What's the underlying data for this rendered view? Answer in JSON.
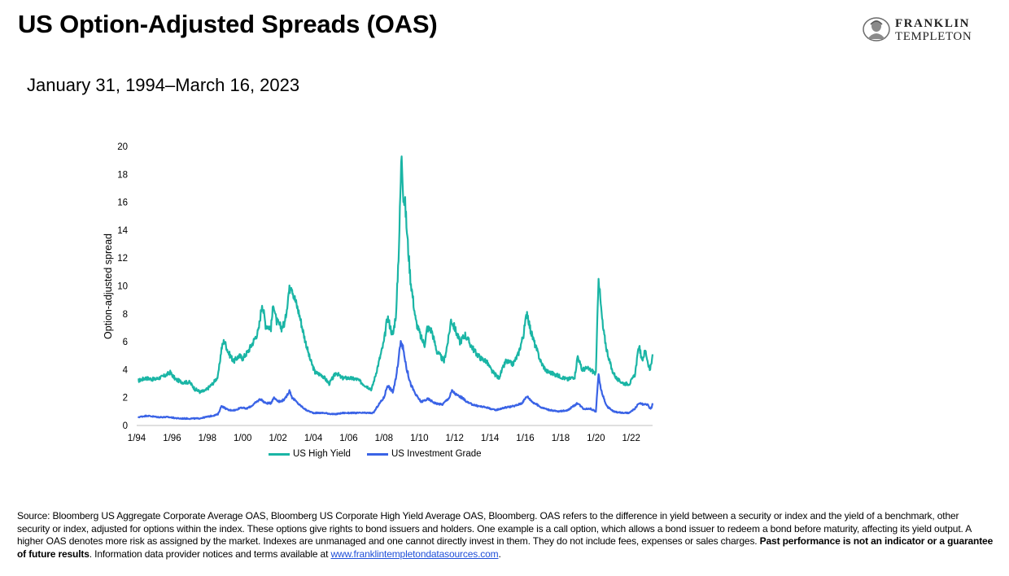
{
  "header": {
    "title": "US Option-Adjusted Spreads (OAS)",
    "subtitle": "January 31, 1994–March 16, 2023"
  },
  "logo": {
    "line1": "FRANKLIN",
    "line2": "TEMPLETON"
  },
  "colors": {
    "high_yield": "#1ab5a5",
    "investment_grade": "#3a63e6"
  },
  "chart_data": {
    "type": "line",
    "title": "",
    "xlabel": "",
    "ylabel": "Option-adjusted spread",
    "ylim": [
      0,
      20
    ],
    "yticks": [
      "0",
      "2",
      "4",
      "6",
      "8",
      "10",
      "12",
      "14",
      "16",
      "18",
      "20"
    ],
    "xlim": [
      1994.08,
      2023.21
    ],
    "xticks": [
      {
        "label": "1/94",
        "x": 1994.0
      },
      {
        "label": "1/96",
        "x": 1996.0
      },
      {
        "label": "1/98",
        "x": 1998.0
      },
      {
        "label": "1/00",
        "x": 2000.0
      },
      {
        "label": "1/02",
        "x": 2002.0
      },
      {
        "label": "1/04",
        "x": 2004.0
      },
      {
        "label": "1/06",
        "x": 2006.0
      },
      {
        "label": "1/08",
        "x": 2008.0
      },
      {
        "label": "1/10",
        "x": 2010.0
      },
      {
        "label": "1/12",
        "x": 2012.0
      },
      {
        "label": "1/14",
        "x": 2014.0
      },
      {
        "label": "1/16",
        "x": 2016.0
      },
      {
        "label": "1/18",
        "x": 2018.0
      },
      {
        "label": "1/20",
        "x": 2020.0
      },
      {
        "label": "1/22",
        "x": 2022.0
      }
    ],
    "grid": false,
    "legend_position": "bottom",
    "series": [
      {
        "name": "US High Yield",
        "color": "#1ab5a5",
        "points": [
          [
            1994.08,
            3.2
          ],
          [
            1994.5,
            3.4
          ],
          [
            1995.0,
            3.3
          ],
          [
            1995.5,
            3.5
          ],
          [
            1995.9,
            3.8
          ],
          [
            1996.2,
            3.3
          ],
          [
            1996.6,
            3.1
          ],
          [
            1997.0,
            3.1
          ],
          [
            1997.3,
            2.6
          ],
          [
            1997.6,
            2.4
          ],
          [
            1997.9,
            2.5
          ],
          [
            1998.3,
            3.0
          ],
          [
            1998.6,
            3.5
          ],
          [
            1998.8,
            5.5
          ],
          [
            1998.95,
            6.1
          ],
          [
            1999.2,
            5.2
          ],
          [
            1999.5,
            4.6
          ],
          [
            1999.8,
            5.0
          ],
          [
            2000.0,
            4.8
          ],
          [
            2000.3,
            5.3
          ],
          [
            2000.6,
            6.0
          ],
          [
            2000.9,
            6.8
          ],
          [
            2001.0,
            7.8
          ],
          [
            2001.1,
            8.8
          ],
          [
            2001.3,
            7.2
          ],
          [
            2001.6,
            7.0
          ],
          [
            2001.75,
            8.8
          ],
          [
            2001.9,
            7.5
          ],
          [
            2002.2,
            7.0
          ],
          [
            2002.4,
            7.4
          ],
          [
            2002.6,
            9.5
          ],
          [
            2002.75,
            10.2
          ],
          [
            2002.9,
            9.3
          ],
          [
            2003.2,
            8.0
          ],
          [
            2003.5,
            6.3
          ],
          [
            2003.8,
            4.8
          ],
          [
            2004.1,
            3.8
          ],
          [
            2004.5,
            3.6
          ],
          [
            2004.9,
            3.0
          ],
          [
            2005.3,
            3.8
          ],
          [
            2005.6,
            3.4
          ],
          [
            2006.0,
            3.4
          ],
          [
            2006.5,
            3.3
          ],
          [
            2006.9,
            2.9
          ],
          [
            2007.3,
            2.6
          ],
          [
            2007.5,
            3.5
          ],
          [
            2007.8,
            5.0
          ],
          [
            2008.0,
            6.0
          ],
          [
            2008.2,
            7.8
          ],
          [
            2008.5,
            6.4
          ],
          [
            2008.7,
            8.2
          ],
          [
            2008.85,
            13.0
          ],
          [
            2008.95,
            17.5
          ],
          [
            2009.0,
            19.6
          ],
          [
            2009.1,
            16.5
          ],
          [
            2009.2,
            15.8
          ],
          [
            2009.35,
            13.0
          ],
          [
            2009.5,
            10.5
          ],
          [
            2009.8,
            7.5
          ],
          [
            2010.1,
            6.3
          ],
          [
            2010.3,
            5.8
          ],
          [
            2010.45,
            7.0
          ],
          [
            2010.7,
            6.8
          ],
          [
            2011.0,
            5.3
          ],
          [
            2011.4,
            4.6
          ],
          [
            2011.65,
            6.2
          ],
          [
            2011.8,
            7.6
          ],
          [
            2012.0,
            7.0
          ],
          [
            2012.3,
            6.0
          ],
          [
            2012.6,
            6.5
          ],
          [
            2012.9,
            5.8
          ],
          [
            2013.2,
            5.2
          ],
          [
            2013.5,
            4.8
          ],
          [
            2013.8,
            4.6
          ],
          [
            2014.1,
            3.9
          ],
          [
            2014.5,
            3.4
          ],
          [
            2014.9,
            4.6
          ],
          [
            2015.3,
            4.4
          ],
          [
            2015.6,
            5.1
          ],
          [
            2015.9,
            6.5
          ],
          [
            2016.1,
            8.2
          ],
          [
            2016.3,
            6.8
          ],
          [
            2016.6,
            5.6
          ],
          [
            2016.9,
            4.5
          ],
          [
            2017.2,
            3.9
          ],
          [
            2017.6,
            3.7
          ],
          [
            2018.0,
            3.5
          ],
          [
            2018.4,
            3.3
          ],
          [
            2018.8,
            3.5
          ],
          [
            2018.97,
            5.0
          ],
          [
            2019.2,
            4.0
          ],
          [
            2019.5,
            4.1
          ],
          [
            2019.8,
            3.9
          ],
          [
            2020.0,
            3.7
          ],
          [
            2020.15,
            10.8
          ],
          [
            2020.25,
            9.0
          ],
          [
            2020.4,
            7.0
          ],
          [
            2020.6,
            5.5
          ],
          [
            2020.9,
            4.0
          ],
          [
            2021.2,
            3.3
          ],
          [
            2021.6,
            3.0
          ],
          [
            2021.9,
            3.0
          ],
          [
            2022.2,
            3.6
          ],
          [
            2022.45,
            5.8
          ],
          [
            2022.6,
            4.6
          ],
          [
            2022.8,
            5.4
          ],
          [
            2022.95,
            4.5
          ],
          [
            2023.05,
            4.0
          ],
          [
            2023.15,
            4.4
          ],
          [
            2023.21,
            5.1
          ]
        ]
      },
      {
        "name": "US Investment Grade",
        "color": "#3a63e6",
        "points": [
          [
            1994.08,
            0.6
          ],
          [
            1994.6,
            0.7
          ],
          [
            1995.2,
            0.6
          ],
          [
            1995.8,
            0.6
          ],
          [
            1996.4,
            0.5
          ],
          [
            1997.0,
            0.5
          ],
          [
            1997.5,
            0.5
          ],
          [
            1997.9,
            0.6
          ],
          [
            1998.3,
            0.7
          ],
          [
            1998.6,
            0.8
          ],
          [
            1998.8,
            1.4
          ],
          [
            1999.2,
            1.1
          ],
          [
            1999.6,
            1.1
          ],
          [
            1999.9,
            1.3
          ],
          [
            2000.2,
            1.2
          ],
          [
            2000.5,
            1.4
          ],
          [
            2000.8,
            1.7
          ],
          [
            2001.0,
            1.9
          ],
          [
            2001.3,
            1.6
          ],
          [
            2001.6,
            1.6
          ],
          [
            2001.75,
            2.0
          ],
          [
            2002.1,
            1.7
          ],
          [
            2002.4,
            1.9
          ],
          [
            2002.65,
            2.5
          ],
          [
            2002.8,
            2.0
          ],
          [
            2003.2,
            1.5
          ],
          [
            2003.6,
            1.1
          ],
          [
            2004.0,
            0.9
          ],
          [
            2004.6,
            0.9
          ],
          [
            2005.2,
            0.8
          ],
          [
            2005.7,
            0.9
          ],
          [
            2006.3,
            0.9
          ],
          [
            2006.9,
            0.9
          ],
          [
            2007.4,
            0.9
          ],
          [
            2007.7,
            1.5
          ],
          [
            2008.0,
            2.0
          ],
          [
            2008.2,
            2.9
          ],
          [
            2008.5,
            2.4
          ],
          [
            2008.7,
            3.5
          ],
          [
            2008.85,
            5.0
          ],
          [
            2008.95,
            6.2
          ],
          [
            2009.1,
            5.4
          ],
          [
            2009.3,
            4.0
          ],
          [
            2009.5,
            3.0
          ],
          [
            2009.8,
            2.2
          ],
          [
            2010.1,
            1.7
          ],
          [
            2010.5,
            1.9
          ],
          [
            2010.9,
            1.6
          ],
          [
            2011.3,
            1.5
          ],
          [
            2011.7,
            2.0
          ],
          [
            2011.85,
            2.5
          ],
          [
            2012.1,
            2.2
          ],
          [
            2012.4,
            2.0
          ],
          [
            2012.8,
            1.6
          ],
          [
            2013.3,
            1.4
          ],
          [
            2013.8,
            1.3
          ],
          [
            2014.3,
            1.1
          ],
          [
            2014.9,
            1.3
          ],
          [
            2015.4,
            1.4
          ],
          [
            2015.8,
            1.6
          ],
          [
            2016.1,
            2.1
          ],
          [
            2016.4,
            1.7
          ],
          [
            2016.9,
            1.3
          ],
          [
            2017.4,
            1.1
          ],
          [
            2017.9,
            1.0
          ],
          [
            2018.4,
            1.1
          ],
          [
            2018.97,
            1.6
          ],
          [
            2019.3,
            1.2
          ],
          [
            2019.7,
            1.2
          ],
          [
            2020.0,
            1.0
          ],
          [
            2020.15,
            3.7
          ],
          [
            2020.3,
            2.5
          ],
          [
            2020.6,
            1.4
          ],
          [
            2021.0,
            1.0
          ],
          [
            2021.5,
            0.9
          ],
          [
            2021.9,
            0.9
          ],
          [
            2022.2,
            1.2
          ],
          [
            2022.45,
            1.6
          ],
          [
            2022.7,
            1.5
          ],
          [
            2022.95,
            1.5
          ],
          [
            2023.05,
            1.2
          ],
          [
            2023.15,
            1.3
          ],
          [
            2023.21,
            1.6
          ]
        ]
      }
    ]
  },
  "legend": [
    {
      "label": "US High Yield",
      "color": "#1ab5a5"
    },
    {
      "label": "US Investment Grade",
      "color": "#3a63e6"
    }
  ],
  "footer": {
    "source_text": "Source: Bloomberg US Aggregate Corporate Average OAS, Bloomberg US Corporate High Yield Average OAS, Bloomberg. OAS refers to the difference in yield between a security or index and the yield of a benchmark, other security or index, adjusted for options within the index. These options give rights to bond issuers and holders. One example is a call option, which allows a bond issuer to redeem a bond before maturity, affecting its yield output. A higher OAS denotes more risk as assigned by the market. Indexes are unmanaged and one cannot directly invest in them. They do not include fees, expenses or sales charges.",
    "bold_text": "Past performance is not an indicator or a guarantee of future results",
    "after_bold": ". Information data provider notices and terms available at",
    "link_text": "www.franklintempletondatasources.com",
    "end": "."
  }
}
